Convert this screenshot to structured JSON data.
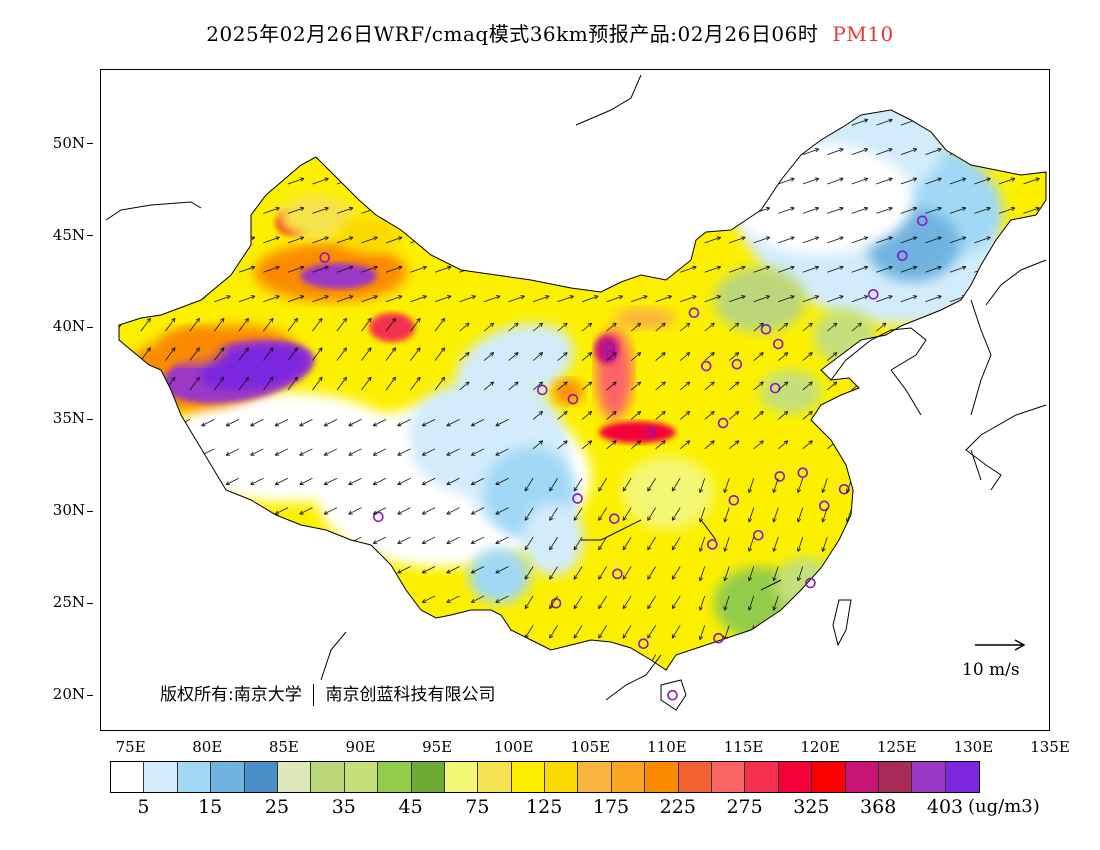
{
  "title": {
    "main": "2025年02月26日WRF/cmaq模式36km预报产品:02月26日06时",
    "species": "PM10",
    "species_color": "#ee3333"
  },
  "map": {
    "lon_range": [
      73,
      135
    ],
    "lat_range": [
      18,
      54
    ],
    "lat_labels": [
      "20N",
      "25N",
      "30N",
      "35N",
      "40N",
      "45N",
      "50N"
    ],
    "lon_labels": [
      "75E",
      "80E",
      "85E",
      "90E",
      "95E",
      "100E",
      "105E",
      "110E",
      "115E",
      "120E",
      "125E",
      "130E",
      "135E"
    ]
  },
  "copyright": {
    "left": "版权所有:南京大学",
    "right": "南京创蓝科技有限公司"
  },
  "wind_reference": {
    "label": "10 m/s"
  },
  "colorbar": {
    "unit": "(ug/m3)",
    "colors": [
      "#ffffff",
      "#d2ecfb",
      "#a0d8f5",
      "#6fb3e0",
      "#4a8fc7",
      "#dde9b8",
      "#bcd77a",
      "#c3e07a",
      "#93cc4b",
      "#6faa35",
      "#f4f773",
      "#f5e24e",
      "#fcf000",
      "#fcd900",
      "#f9b33f",
      "#fba622",
      "#fb8a00",
      "#f26130",
      "#fc6466",
      "#f5304e",
      "#f5003a",
      "#fb0000",
      "#c81477",
      "#a82b5a",
      "#9b37c6",
      "#7d28e0"
    ],
    "labels": [
      "5",
      "15",
      "25",
      "35",
      "45",
      "75",
      "125",
      "175",
      "225",
      "275",
      "325",
      "368",
      "403"
    ]
  },
  "monitor_sites": [
    [
      87.6,
      43.8
    ],
    [
      126.6,
      45.8
    ],
    [
      125.3,
      43.9
    ],
    [
      123.4,
      41.8
    ],
    [
      116.4,
      39.9
    ],
    [
      117.2,
      39.1
    ],
    [
      114.5,
      38.0
    ],
    [
      112.5,
      37.9
    ],
    [
      111.7,
      40.8
    ],
    [
      106.3,
      38.5
    ],
    [
      106.2,
      38.9
    ],
    [
      103.8,
      36.1
    ],
    [
      101.8,
      36.6
    ],
    [
      108.9,
      34.3
    ],
    [
      113.6,
      34.8
    ],
    [
      117.0,
      36.7
    ],
    [
      104.1,
      30.7
    ],
    [
      106.5,
      29.6
    ],
    [
      114.3,
      30.6
    ],
    [
      117.3,
      31.9
    ],
    [
      118.8,
      32.1
    ],
    [
      121.5,
      31.2
    ],
    [
      120.2,
      30.3
    ],
    [
      112.9,
      28.2
    ],
    [
      115.9,
      28.7
    ],
    [
      119.3,
      26.1
    ],
    [
      106.7,
      26.6
    ],
    [
      102.7,
      25.0
    ],
    [
      108.4,
      22.8
    ],
    [
      113.3,
      23.1
    ],
    [
      110.3,
      20.0
    ],
    [
      91.1,
      29.7
    ]
  ]
}
